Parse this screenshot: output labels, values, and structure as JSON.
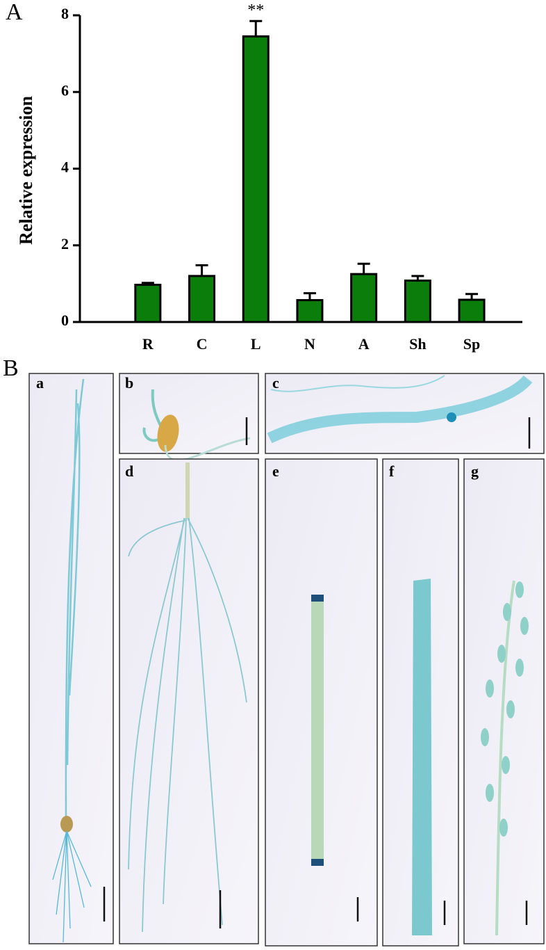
{
  "panel_labels": [
    "A",
    "B"
  ],
  "photo_labels": [
    "a",
    "b",
    "c",
    "d",
    "e",
    "f",
    "g"
  ],
  "chart_data": {
    "type": "bar",
    "y_label": "Relative expression",
    "categories": [
      "R",
      "C",
      "L",
      "N",
      "A",
      "Sh",
      "Sp"
    ],
    "values": [
      0.97,
      1.2,
      7.45,
      0.57,
      1.25,
      1.08,
      0.58
    ],
    "errors": [
      0.05,
      0.28,
      0.4,
      0.18,
      0.27,
      0.12,
      0.15
    ],
    "significance": [
      null,
      null,
      "**",
      null,
      null,
      null,
      null
    ],
    "color": "#0b7d0b",
    "ylim": [
      0,
      8
    ],
    "yticks": [
      0,
      2,
      4,
      6,
      8
    ]
  }
}
